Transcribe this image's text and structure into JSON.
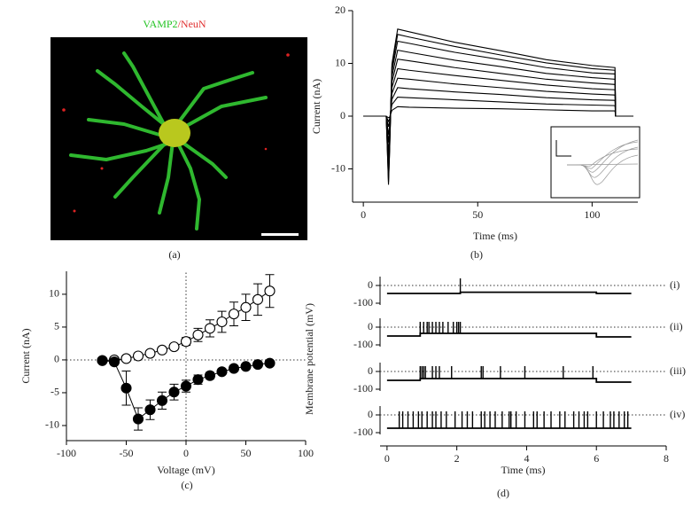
{
  "chart_data": [
    {
      "type": "image",
      "title_parts": [
        {
          "text": "VAMP2",
          "color": "#22c322"
        },
        {
          "text": "/NeuN",
          "color": "#e03030"
        }
      ],
      "caption": "(a)"
    },
    {
      "type": "line",
      "caption": "(b)",
      "xlabel": "Time (ms)",
      "ylabel": "Current (nA)",
      "color": "#000000",
      "xlim": [
        -4.7,
        120
      ],
      "ylim": [
        -16.3,
        20
      ],
      "xticks": [
        0,
        50,
        100
      ],
      "yticks": [
        -10,
        0,
        10,
        20
      ],
      "x": [
        0,
        10,
        11,
        11.5,
        12.5,
        15,
        20,
        40,
        60,
        80,
        100,
        110,
        110.3,
        118
      ],
      "series": [
        {
          "values": [
            0,
            0,
            -13,
            -6.5,
            9.9,
            16.5,
            16.0,
            14.0,
            12.4,
            10.7,
            9.6,
            9.2,
            0,
            0
          ]
        },
        {
          "values": [
            0,
            0,
            -12.5,
            -6.3,
            9.3,
            15.5,
            15.0,
            13.2,
            11.6,
            10.1,
            9.0,
            8.7,
            0,
            0
          ]
        },
        {
          "values": [
            0,
            0,
            -11,
            -5.5,
            8.5,
            14.2,
            13.8,
            12.1,
            10.7,
            9.2,
            8.2,
            8.0,
            0,
            0
          ]
        },
        {
          "values": [
            0,
            0,
            -9,
            -4.5,
            7.5,
            12.5,
            12.1,
            10.6,
            9.4,
            8.1,
            7.3,
            7.0,
            0,
            0
          ]
        },
        {
          "values": [
            0,
            0,
            -7,
            -3.5,
            6.5,
            10.8,
            10.5,
            9.2,
            8.1,
            7.0,
            6.3,
            6.0,
            0,
            0
          ]
        },
        {
          "values": [
            0,
            0,
            -5,
            -2.5,
            5.4,
            9,
            8.7,
            7.7,
            6.8,
            5.9,
            5.2,
            5.0,
            0,
            0
          ]
        },
        {
          "values": [
            0,
            0,
            -3.5,
            -1.8,
            4.3,
            7.2,
            7.0,
            6.1,
            5.4,
            4.7,
            4.2,
            4.0,
            0,
            0
          ]
        },
        {
          "values": [
            0,
            0,
            -2,
            -1,
            3.2,
            5.4,
            5.2,
            4.6,
            4.1,
            3.5,
            3.1,
            3.0,
            0,
            0
          ]
        },
        {
          "values": [
            0,
            0,
            -1,
            -0.5,
            2.2,
            3.6,
            3.5,
            3.1,
            2.7,
            2.3,
            2.1,
            2.0,
            0,
            0
          ]
        },
        {
          "values": [
            0,
            0,
            -0.3,
            -0.2,
            1.1,
            1.8,
            1.7,
            1.5,
            1.4,
            1.2,
            1.0,
            1.0,
            0,
            0
          ]
        }
      ]
    },
    {
      "type": "errorbar",
      "caption": "(c)",
      "xlabel": "Voltage (mV)",
      "ylabel": "Current (nA)",
      "zero_lines": true,
      "xlim": [
        -100,
        100
      ],
      "ylim": [
        -12.3,
        13.5
      ],
      "xticks": [
        -100,
        -50,
        0,
        50,
        100
      ],
      "yticks": [
        -10,
        -5,
        0,
        5,
        10
      ],
      "x": [
        -70,
        -60,
        -50,
        -40,
        -30,
        -20,
        -10,
        0,
        10,
        20,
        30,
        40,
        50,
        60,
        70
      ],
      "series": [
        {
          "marker": "open",
          "color": "#000000",
          "values": [
            -0.1,
            0,
            0.2,
            0.6,
            1.0,
            1.5,
            2.0,
            2.8,
            3.8,
            4.8,
            5.8,
            7.0,
            8.0,
            9.2,
            10.5
          ],
          "errors": [
            0,
            0,
            0,
            0.1,
            0.2,
            0.3,
            0.4,
            0.6,
            1.0,
            1.3,
            1.6,
            1.8,
            2.0,
            2.4,
            2.5
          ]
        },
        {
          "marker": "filled",
          "color": "#000000",
          "values": [
            -0.1,
            -0.3,
            -4.3,
            -9.0,
            -7.6,
            -6.2,
            -4.9,
            -4.0,
            -3.0,
            -2.4,
            -1.8,
            -1.3,
            -1.0,
            -0.7,
            -0.5
          ],
          "errors": [
            0.1,
            0.3,
            2.6,
            1.7,
            1.5,
            1.3,
            1.2,
            0.9,
            0.7,
            0.5,
            0.4,
            0.3,
            0.2,
            0.2,
            0.2
          ]
        }
      ]
    },
    {
      "type": "traces",
      "caption": "(d)",
      "xlabel": "Time (ms)",
      "ylabel": "Membrane potential (mV)",
      "color": "#000000",
      "zero_line": true,
      "xlim": [
        -0.2,
        8
      ],
      "xticks": [
        0,
        2,
        4,
        6,
        8
      ],
      "subplots": [
        {
          "label": "(i)",
          "ylim": [
            -110,
            50
          ],
          "yticks": [
            0,
            -100
          ],
          "x": [
            0,
            2.1,
            2.1,
            6,
            6,
            7
          ],
          "values": [
            -45,
            -45,
            -38,
            -38,
            -45,
            -45
          ],
          "spikes": [
            2.1
          ],
          "spike_peak": 40
        },
        {
          "label": "(ii)",
          "ylim": [
            -110,
            50
          ],
          "yticks": [
            0,
            -100
          ],
          "x": [
            0,
            0.95,
            0.95,
            6,
            6,
            7
          ],
          "values": [
            -50,
            -50,
            -35,
            -35,
            -55,
            -55
          ],
          "spikes": [
            0.95,
            1.05,
            1.15,
            1.2,
            1.3,
            1.4,
            1.5,
            1.6,
            1.75,
            1.9,
            2.0,
            2.05,
            2.1
          ],
          "spike_peak": 30
        },
        {
          "label": "(iii)",
          "ylim": [
            -110,
            50
          ],
          "yticks": [
            0,
            -100
          ],
          "x": [
            0,
            0.95,
            0.95,
            6,
            6,
            7
          ],
          "values": [
            -50,
            -50,
            -40,
            -40,
            -60,
            -60
          ],
          "spikes": [
            0.95,
            1.0,
            1.05,
            1.1,
            1.3,
            1.4,
            1.5,
            1.85,
            2.7,
            2.75,
            3.25,
            3.95,
            5.05,
            5.9
          ],
          "spike_peak": 30
        },
        {
          "label": "(iv)",
          "ylim": [
            -110,
            50
          ],
          "yticks": [
            0,
            -100
          ],
          "x": [
            0,
            7
          ],
          "values": [
            -75,
            -75
          ],
          "spikes": [
            0.35,
            0.45,
            0.6,
            0.75,
            0.9,
            1.0,
            1.15,
            1.3,
            1.4,
            1.55,
            1.7,
            1.95,
            2.15,
            2.3,
            2.45,
            2.7,
            2.8,
            2.95,
            3.1,
            3.3,
            3.5,
            3.55,
            3.7,
            3.95,
            4.2,
            4.3,
            4.5,
            4.7,
            4.95,
            5.1,
            5.35,
            5.5,
            5.65,
            5.75,
            6.0,
            6.2,
            6.4,
            6.5,
            6.65,
            6.8,
            6.9
          ],
          "spike_peak": 20
        }
      ]
    }
  ]
}
